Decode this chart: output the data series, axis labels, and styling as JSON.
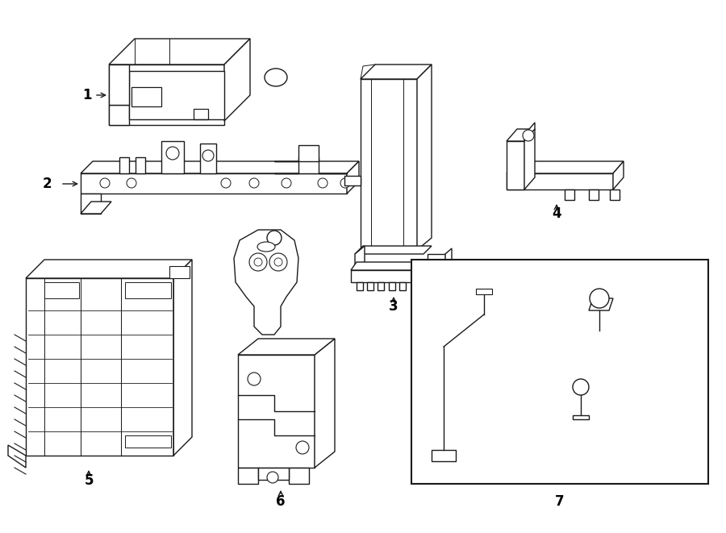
{
  "background_color": "#ffffff",
  "line_color": "#1a1a1a",
  "fig_width": 9.0,
  "fig_height": 6.61,
  "dpi": 100,
  "lw": 1.0
}
